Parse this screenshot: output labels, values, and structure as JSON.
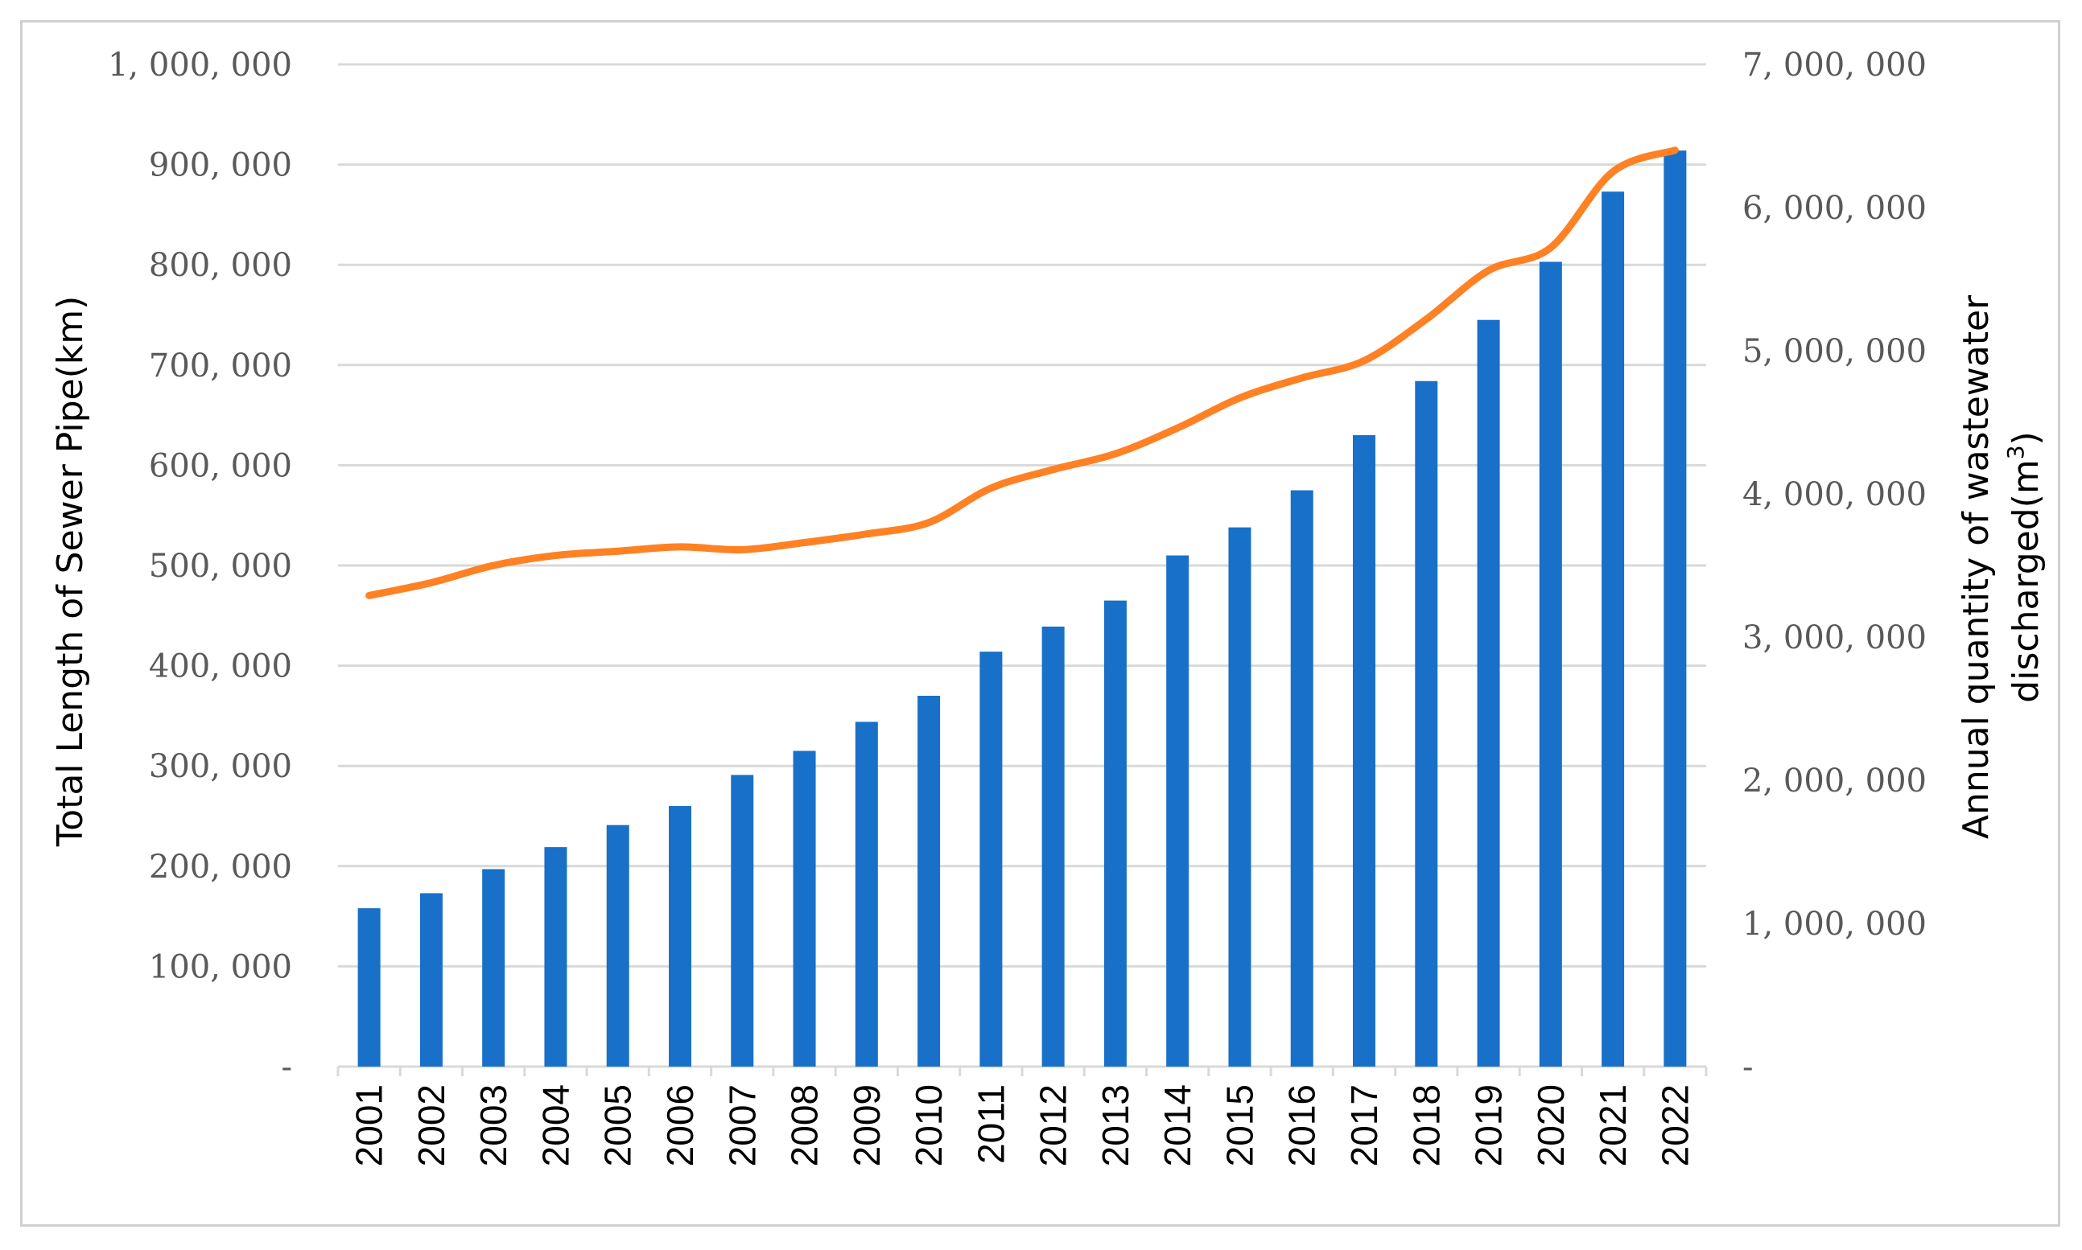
{
  "chart_data": {
    "type": "bar+line",
    "title": "",
    "categories": [
      "2001",
      "2002",
      "2003",
      "2004",
      "2005",
      "2006",
      "2007",
      "2008",
      "2009",
      "2010",
      "2011",
      "2012",
      "2013",
      "2014",
      "2015",
      "2016",
      "2017",
      "2018",
      "2019",
      "2020",
      "2021",
      "2022"
    ],
    "series": [
      {
        "name": "Total Length of Sewer Pipe(km)",
        "type": "bar",
        "axis": "left",
        "color": "#1870C8",
        "values": [
          158000,
          173000,
          197000,
          219000,
          241000,
          260000,
          291000,
          315000,
          344000,
          370000,
          414000,
          439000,
          465000,
          510000,
          538000,
          575000,
          630000,
          684000,
          745000,
          803000,
          873000,
          914000
        ]
      },
      {
        "name": "Annual quantity of wastewater discharged(m3)",
        "type": "line",
        "axis": "right",
        "color": "#FF8124",
        "values": [
          3290000,
          3380000,
          3500000,
          3570000,
          3600000,
          3630000,
          3610000,
          3660000,
          3720000,
          3800000,
          4040000,
          4170000,
          4280000,
          4460000,
          4670000,
          4810000,
          4930000,
          5220000,
          5560000,
          5720000,
          6250000,
          6400000
        ]
      }
    ],
    "left_axis": {
      "label": "Total Length of Sewer Pipe(km)",
      "min": 0,
      "max": 1000000,
      "tick_labels": [
        "-",
        "100, 000",
        "200, 000",
        "300, 000",
        "400, 000",
        "500, 000",
        "600, 000",
        "700, 000",
        "800, 000",
        "900, 000",
        "1, 000, 000"
      ]
    },
    "right_axis": {
      "label_line1": "Annual quantity of wastewater",
      "label_line2_prefix": "discharged(m",
      "label_line2_sup": "3",
      "label_line2_suffix": ")",
      "min": 0,
      "max": 7000000,
      "tick_labels": [
        "-",
        "1, 000, 000",
        "2, 000, 000",
        "3, 000, 000",
        "4, 000, 000",
        "5, 000, 000",
        "6, 000, 000",
        "7, 000, 000"
      ]
    },
    "grid": true,
    "legend": "none"
  }
}
